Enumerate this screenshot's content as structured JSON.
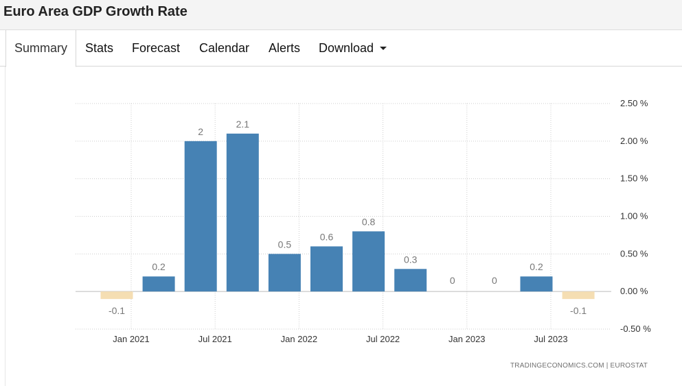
{
  "header": {
    "title": "Euro Area GDP Growth Rate"
  },
  "tabs": [
    {
      "label": "Summary",
      "active": true
    },
    {
      "label": "Stats"
    },
    {
      "label": "Forecast"
    },
    {
      "label": "Calendar"
    },
    {
      "label": "Alerts"
    },
    {
      "label": "Download",
      "dropdown": true
    }
  ],
  "chart_data": {
    "type": "bar",
    "x": [
      "2020-12",
      "2021-03",
      "2021-06",
      "2021-09",
      "2021-12",
      "2022-03",
      "2022-06",
      "2022-09",
      "2022-12",
      "2023-03",
      "2023-06",
      "2023-09"
    ],
    "values": [
      -0.1,
      0.2,
      2,
      2.1,
      0.5,
      0.6,
      0.8,
      0.3,
      0,
      0,
      0.2,
      -0.1
    ],
    "data_labels": [
      "-0.1",
      "0.2",
      "2",
      "2.1",
      "0.5",
      "0.6",
      "0.8",
      "0.3",
      "0",
      "0",
      "0.2",
      "-0.1"
    ],
    "x_ticks": [
      "Jan 2021",
      "Jul 2021",
      "Jan 2022",
      "Jul 2022",
      "Jan 2023",
      "Jul 2023"
    ],
    "y_ticks": [
      "2.50 %",
      "2.00 %",
      "1.50 %",
      "1.00 %",
      "0.50 %",
      "0.00 %",
      "-0.50 %"
    ],
    "y_tick_values": [
      2.5,
      2.0,
      1.5,
      1.0,
      0.5,
      0.0,
      -0.5
    ],
    "ylim": [
      -0.5,
      2.5
    ],
    "y_axis_side": "right",
    "grid": true,
    "colors": {
      "positive": "#4682b4",
      "negative": "#f5deb3",
      "grid": "#cccccc",
      "zero_line": "#bbbbbb"
    },
    "source": "TRADINGECONOMICS.COM  |  EUROSTAT"
  }
}
